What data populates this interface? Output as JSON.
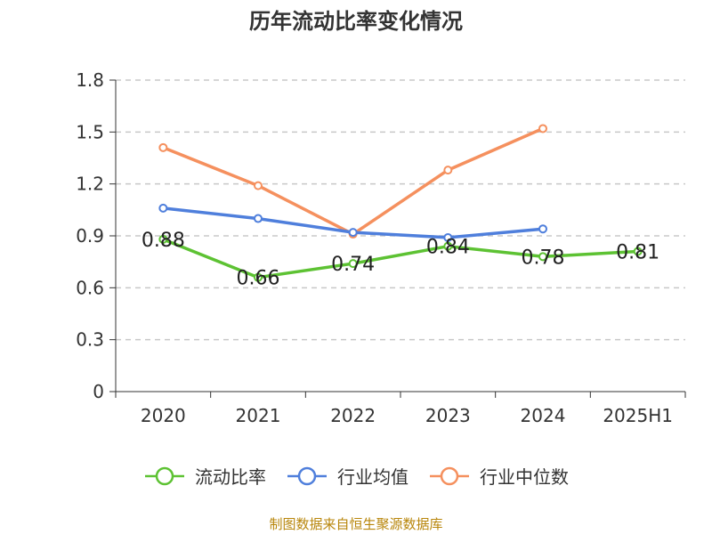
{
  "chart_data": {
    "type": "line",
    "title": "历年流动比率变化情况",
    "categories": [
      "2020",
      "2021",
      "2022",
      "2023",
      "2024",
      "2025H1"
    ],
    "yticks": [
      "0",
      "0.3",
      "0.6",
      "0.9",
      "1.2",
      "1.5",
      "1.8"
    ],
    "ylim": [
      0,
      1.8
    ],
    "grid": true,
    "legend_position": "bottom",
    "series": [
      {
        "name": "流动比率",
        "color": "#5dc233",
        "values": [
          0.88,
          0.66,
          0.74,
          0.84,
          0.78,
          0.81
        ],
        "labels": [
          "0.88",
          "0.66",
          "0.74",
          "0.84",
          "0.78",
          "0.81"
        ]
      },
      {
        "name": "行业均值",
        "color": "#4f7fdc",
        "values": [
          1.06,
          1.0,
          0.92,
          0.89,
          0.94,
          null
        ]
      },
      {
        "name": "行业中位数",
        "color": "#f5905e",
        "values": [
          1.41,
          1.19,
          0.91,
          1.28,
          1.52,
          null
        ]
      }
    ]
  },
  "source_note": "制图数据来自恒生聚源数据库"
}
